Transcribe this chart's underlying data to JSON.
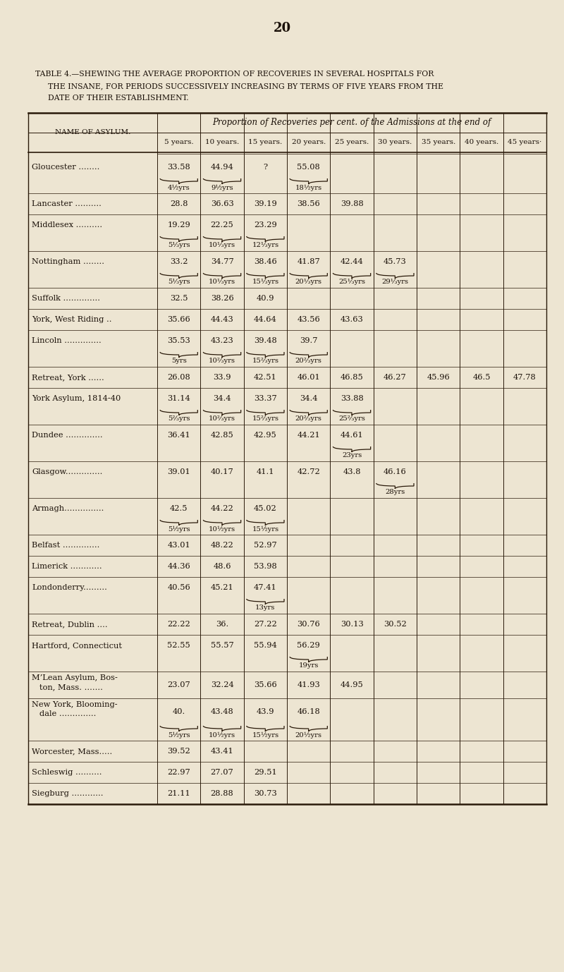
{
  "page_number": "20",
  "title_line1": "Table 4.—Shewing the average proportion of recoveries in several hospitals for",
  "title_line2": "the insane, for periods successively increasing by terms of five years from the",
  "title_line3": "date of their establishment.",
  "title_sc1": "TABLE 4.—SHEWING THE AVERAGE PROPORTION OF RECOVERIES IN SEVERAL HOSPITALS FOR",
  "title_sc2": "THE INSANE, FOR PERIODS SUCCESSIVELY INCREASING BY TERMS OF FIVE YEARS FROM THE",
  "title_sc3": "DATE OF THEIR ESTABLISHMENT.",
  "header_main": "Proportion of Recoveries per cent. of the Admissions at the end of",
  "col_header_name": "NAME OF ASYLUM.",
  "col_headers": [
    "5 years.",
    "10 years.",
    "15 years.",
    "20 years.",
    "25 years.",
    "30 years.",
    "35 years.",
    "40 years.",
    "45 years·"
  ],
  "rows": [
    {
      "name": "Gloucester ........",
      "data": [
        "33.58",
        "44.94",
        "?",
        "55.08",
        "",
        "",
        "",
        "",
        ""
      ],
      "brace_cols": [
        0,
        1,
        3
      ],
      "brace_labels": [
        "4½yrs",
        "9½yrs",
        "",
        "18½yrs",
        "",
        "",
        "",
        "",
        ""
      ]
    },
    {
      "name": "Lancaster ..........",
      "data": [
        "28.8",
        "36.63",
        "39.19",
        "38.56",
        "39.88",
        "",
        "",
        "",
        ""
      ],
      "brace_cols": [],
      "brace_labels": [
        "",
        "",
        "",
        "",
        "",
        "",
        "",
        "",
        ""
      ]
    },
    {
      "name": "Middlesex ..........",
      "data": [
        "19.29",
        "22.25",
        "23.29",
        "",
        "",
        "",
        "",
        "",
        ""
      ],
      "brace_cols": [
        0,
        1,
        2
      ],
      "brace_labels": [
        "5⅓yrs",
        "10⅓yrs",
        "12⅓yrs",
        "",
        "",
        "",
        "",
        "",
        ""
      ]
    },
    {
      "name": "Nottingham ........",
      "data": [
        "33.2",
        "34.77",
        "38.46",
        "41.87",
        "42.44",
        "45.73",
        "",
        "",
        ""
      ],
      "brace_cols": [
        0,
        1,
        2,
        3,
        4,
        5
      ],
      "brace_labels": [
        "5⅓yrs",
        "10⅓yrs",
        "15⅓yrs",
        "20⅓yrs",
        "25⅓yrs",
        "29⅓yrs",
        "",
        "",
        ""
      ]
    },
    {
      "name": "Suffolk ..............",
      "data": [
        "32.5",
        "38.26",
        "40.9",
        "",
        "",
        "",
        "",
        "",
        ""
      ],
      "brace_cols": [],
      "brace_labels": [
        "",
        "",
        "",
        "",
        "",
        "",
        "",
        "",
        ""
      ]
    },
    {
      "name": "York, West Riding ..",
      "data": [
        "35.66",
        "44.43",
        "44.64",
        "43.56",
        "43.63",
        "",
        "",
        "",
        ""
      ],
      "brace_cols": [],
      "brace_labels": [
        "",
        "",
        "",
        "",
        "",
        "",
        "",
        "",
        ""
      ]
    },
    {
      "name": "Lincoln ..............",
      "data": [
        "35.53",
        "43.23",
        "39.48",
        "39.7",
        "",
        "",
        "",
        "",
        ""
      ],
      "brace_cols": [
        0,
        1,
        2,
        3
      ],
      "brace_labels": [
        "5yrs",
        "10⅔yrs",
        "15⅔yrs",
        "20⅔yrs",
        "",
        "",
        "",
        "",
        ""
      ]
    },
    {
      "name": "Retreat, York ......",
      "data": [
        "26.08",
        "33.9",
        "42.51",
        "46.01",
        "46.85",
        "46.27",
        "45.96",
        "46.5",
        "47.78"
      ],
      "brace_cols": [],
      "brace_labels": [
        "",
        "",
        "",
        "",
        "",
        "",
        "",
        "",
        ""
      ]
    },
    {
      "name": "York Asylum, 1814-40",
      "data": [
        "31.14",
        "34.4",
        "33.37",
        "34.4",
        "33.88",
        "",
        "",
        "",
        ""
      ],
      "brace_cols": [
        0,
        1,
        2,
        3,
        4
      ],
      "brace_labels": [
        "5⅔yrs",
        "10⅔yrs",
        "15⅔yrs",
        "20⅔yrs",
        "25⅔yrs",
        "",
        "",
        "",
        ""
      ]
    },
    {
      "name": "Dundee ..............",
      "data": [
        "36.41",
        "42.85",
        "42.95",
        "44.21",
        "44.61",
        "",
        "",
        "",
        ""
      ],
      "brace_cols": [
        4
      ],
      "brace_labels": [
        "",
        "",
        "",
        "",
        "23yrs",
        "",
        "",
        "",
        ""
      ]
    },
    {
      "name": "Glasgow..............",
      "data": [
        "39.01",
        "40.17",
        "41.1",
        "42.72",
        "43.8",
        "46.16",
        "",
        "",
        ""
      ],
      "brace_cols": [
        5
      ],
      "brace_labels": [
        "",
        "",
        "",
        "",
        "",
        "28yrs",
        "",
        "",
        ""
      ]
    },
    {
      "name": "Armagh...............",
      "data": [
        "42.5",
        "44.22",
        "45.02",
        "",
        "",
        "",
        "",
        "",
        ""
      ],
      "brace_cols": [
        0,
        1,
        2
      ],
      "brace_labels": [
        "5½yrs",
        "10½yrs",
        "15½yrs",
        "",
        "",
        "",
        "",
        "",
        ""
      ]
    },
    {
      "name": "Belfast ..............",
      "data": [
        "43.01",
        "48.22",
        "52.97",
        "",
        "",
        "",
        "",
        "",
        ""
      ],
      "brace_cols": [],
      "brace_labels": [
        "",
        "",
        "",
        "",
        "",
        "",
        "",
        "",
        ""
      ]
    },
    {
      "name": "Limerick ............",
      "data": [
        "44.36",
        "48.6",
        "53.98",
        "",
        "",
        "",
        "",
        "",
        ""
      ],
      "brace_cols": [],
      "brace_labels": [
        "",
        "",
        "",
        "",
        "",
        "",
        "",
        "",
        ""
      ]
    },
    {
      "name": "Londonderry.........",
      "data": [
        "40.56",
        "45.21",
        "47.41",
        "",
        "",
        "",
        "",
        "",
        ""
      ],
      "brace_cols": [
        2
      ],
      "brace_labels": [
        "",
        "",
        "13yrs",
        "",
        "",
        "",
        "",
        "",
        ""
      ]
    },
    {
      "name": "Retreat, Dublin ....",
      "data": [
        "22.22",
        "36.",
        "27.22",
        "30.76",
        "30.13",
        "30.52",
        "",
        "",
        ""
      ],
      "brace_cols": [],
      "brace_labels": [
        "",
        "",
        "",
        "",
        "",
        "",
        "",
        "",
        ""
      ]
    },
    {
      "name": "Hartford, Connecticut",
      "data": [
        "52.55",
        "55.57",
        "55.94",
        "56.29",
        "",
        "",
        "",
        "",
        ""
      ],
      "brace_cols": [
        3
      ],
      "brace_labels": [
        "",
        "",
        "",
        "19yrs",
        "",
        "",
        "",
        "",
        ""
      ]
    },
    {
      "name_lines": [
        "M’Lean Asylum, Bos-",
        "   ton, Mass. ......."
      ],
      "data": [
        "23.07",
        "32.24",
        "35.66",
        "41.93",
        "44.95",
        "",
        "",
        "",
        ""
      ],
      "brace_cols": [],
      "brace_labels": [
        "",
        "",
        "",
        "",
        "",
        "",
        "",
        "",
        ""
      ]
    },
    {
      "name_lines": [
        "New York, Blooming-",
        "   dale .............."
      ],
      "data": [
        "40.",
        "43.48",
        "43.9",
        "46.18",
        "",
        "",
        "",
        "",
        ""
      ],
      "brace_cols": [
        0,
        1,
        2,
        3
      ],
      "brace_labels": [
        "5½yrs",
        "10½yrs",
        "15½yrs",
        "20½yrs",
        "",
        "",
        "",
        "",
        ""
      ]
    },
    {
      "name": "Worcester, Mass.....",
      "data": [
        "39.52",
        "43.41",
        "",
        "",
        "",
        "",
        "",
        "",
        ""
      ],
      "brace_cols": [],
      "brace_labels": [
        "",
        "",
        "",
        "",
        "",
        "",
        "",
        "",
        ""
      ]
    },
    {
      "name": "Schleswig ..........",
      "data": [
        "22.97",
        "27.07",
        "29.51",
        "",
        "",
        "",
        "",
        "",
        ""
      ],
      "brace_cols": [],
      "brace_labels": [
        "",
        "",
        "",
        "",
        "",
        "",
        "",
        "",
        ""
      ]
    },
    {
      "name": "Siegburg ............",
      "data": [
        "21.11",
        "28.88",
        "30.73",
        "",
        "",
        "",
        "",
        "",
        ""
      ],
      "brace_cols": [],
      "brace_labels": [
        "",
        "",
        "",
        "",
        "",
        "",
        "",
        "",
        ""
      ]
    }
  ],
  "bg_color": "#ede5d2",
  "text_color": "#1a1008",
  "line_color": "#2a1a0a"
}
